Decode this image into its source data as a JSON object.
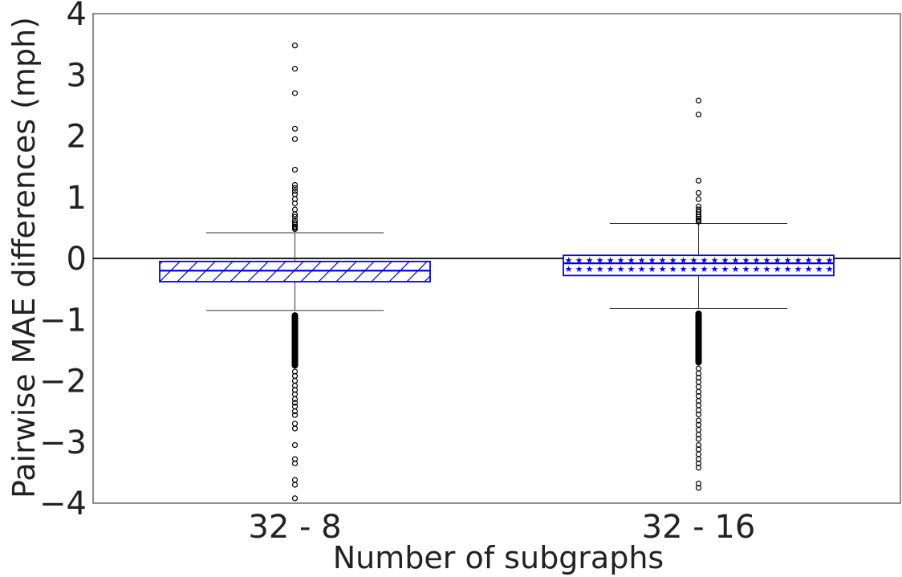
{
  "chart_data": {
    "type": "box",
    "title": "",
    "xlabel": "Number of subgraphs",
    "ylabel": "Pairwise MAE differences (mph)",
    "ylim": [
      -4,
      4
    ],
    "yticks": [
      4,
      3,
      2,
      1,
      0,
      -1,
      -2,
      -3,
      -4
    ],
    "ytick_labels": [
      "4",
      "3",
      "2",
      "1",
      "0",
      "−1",
      "−2",
      "−3",
      "−4"
    ],
    "reference_line": 0,
    "grid": false,
    "colors": {
      "box": "#0000ee",
      "axis": "#444444",
      "whisker": "#333333",
      "zero_line": "#000000"
    },
    "boxes": [
      {
        "label": "32 - 8",
        "hatch": "diagonal",
        "q1": -0.38,
        "median": -0.2,
        "q3": -0.05,
        "whisker_low": -0.85,
        "whisker_high": 0.42,
        "outliers_high": [
          3.48,
          3.1,
          2.7,
          2.12,
          1.95,
          1.45,
          1.2,
          1.15,
          1.1,
          1.05,
          0.97,
          0.9,
          0.8,
          0.72,
          0.68,
          0.62,
          0.58,
          0.55,
          0.52,
          0.5,
          0.48
        ],
        "outliers_low_dense": [
          -0.88,
          -1.8
        ],
        "outliers_low": [
          -1.85,
          -1.92,
          -2.0,
          -2.08,
          -2.15,
          -2.22,
          -2.3,
          -2.36,
          -2.42,
          -2.5,
          -2.56,
          -2.7,
          -2.78,
          -3.05,
          -3.28,
          -3.35,
          -3.62,
          -3.7,
          -3.92
        ]
      },
      {
        "label": "32 - 16",
        "hatch": "stars",
        "q1": -0.28,
        "median": -0.08,
        "q3": 0.05,
        "whisker_low": -0.82,
        "whisker_high": 0.57,
        "outliers_high": [
          2.58,
          2.35,
          1.27,
          1.07,
          0.97,
          0.85,
          0.8,
          0.76,
          0.72,
          0.68,
          0.65,
          0.62,
          0.6
        ],
        "outliers_low_dense": [
          -0.85,
          -1.75
        ],
        "outliers_low": [
          -1.8,
          -1.88,
          -1.95,
          -2.02,
          -2.1,
          -2.18,
          -2.25,
          -2.33,
          -2.4,
          -2.48,
          -2.55,
          -2.65,
          -2.72,
          -2.8,
          -2.88,
          -2.95,
          -3.05,
          -3.12,
          -3.2,
          -3.28,
          -3.35,
          -3.42,
          -3.68,
          -3.75
        ]
      }
    ]
  }
}
